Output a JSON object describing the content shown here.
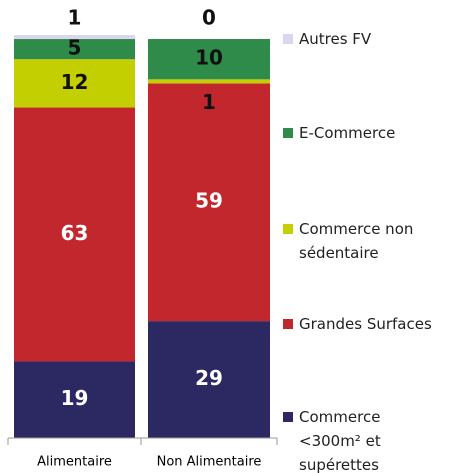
{
  "chart_data": {
    "type": "bar",
    "stacked": true,
    "categories": [
      "Alimentaire",
      "Non Alimentaire"
    ],
    "series": [
      {
        "name": "Commerce <300m² et supérettes",
        "color": "#2b2862",
        "values": [
          19,
          29
        ]
      },
      {
        "name": "Grandes Surfaces",
        "color": "#c1272d",
        "values": [
          63,
          59
        ]
      },
      {
        "name": "Commerce non sédentaire",
        "color": "#c3cf00",
        "values": [
          12,
          1
        ]
      },
      {
        "name": "E-Commerce",
        "color": "#2e8b4a",
        "values": [
          5,
          10
        ]
      },
      {
        "name": "Autres FV",
        "color": "#d9d6ee",
        "values": [
          1,
          0
        ]
      }
    ],
    "ylim": [
      0,
      100
    ]
  }
}
